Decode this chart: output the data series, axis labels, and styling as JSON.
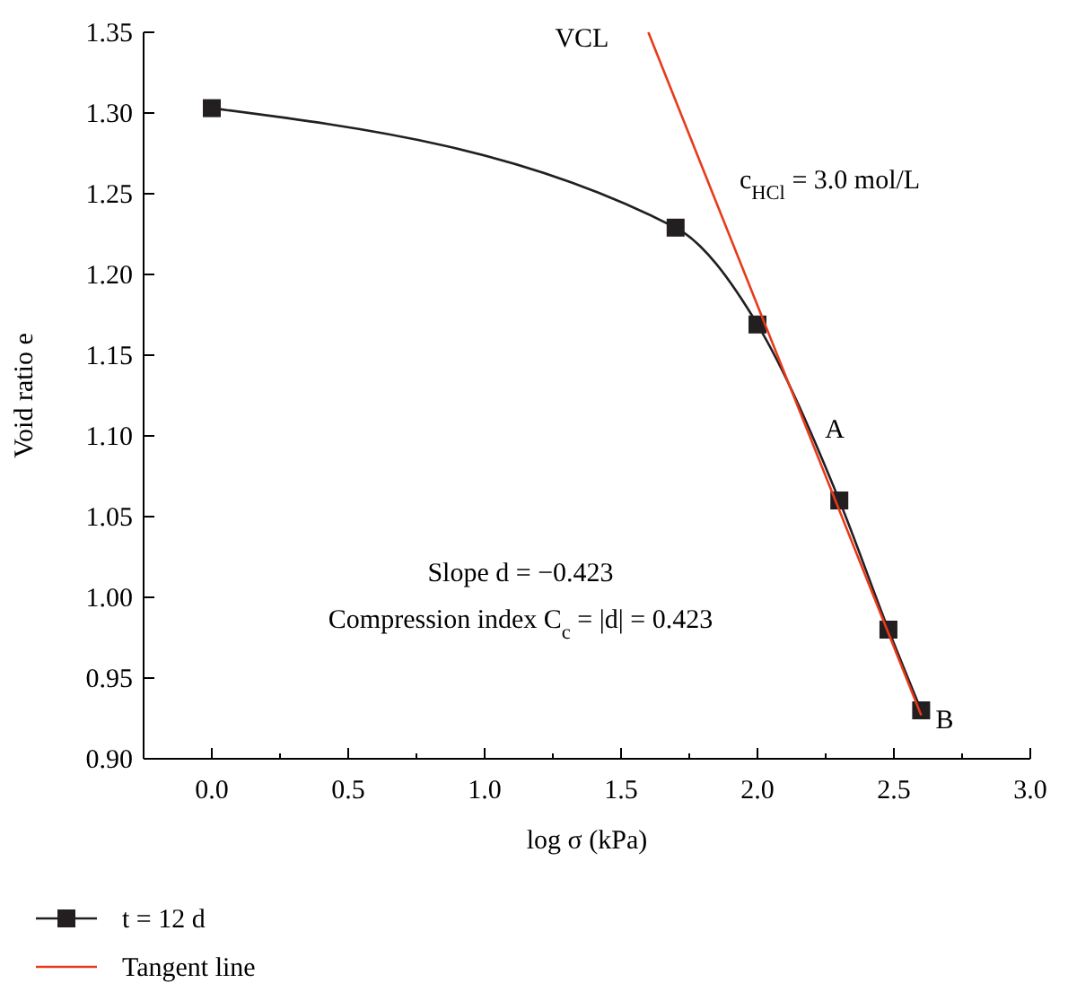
{
  "chart_data": {
    "type": "line",
    "xlabel": "log σ (kPa)",
    "ylabel": "Void ratio e",
    "xlim": [
      -0.25,
      3.0
    ],
    "xticks": [
      {
        "value": -0.25,
        "label": null
      },
      {
        "value": 0,
        "label": "0.0"
      },
      {
        "value": 0.25,
        "label": null
      },
      {
        "value": 0.5,
        "label": "0.5"
      },
      {
        "value": 0.75,
        "label": null
      },
      {
        "value": 1,
        "label": "1.0"
      },
      {
        "value": 1.25,
        "label": null
      },
      {
        "value": 1.5,
        "label": "1.5"
      },
      {
        "value": 1.75,
        "label": null
      },
      {
        "value": 2,
        "label": "2.0"
      },
      {
        "value": 2.25,
        "label": null
      },
      {
        "value": 2.5,
        "label": "2.5"
      },
      {
        "value": 2.75,
        "label": null
      },
      {
        "value": 3,
        "label": "3.0"
      }
    ],
    "ylim": [
      0.9,
      1.35
    ],
    "yticks": [
      {
        "value": 0.9,
        "label": "0.90"
      },
      {
        "value": 0.95,
        "label": "0.95"
      },
      {
        "value": 1,
        "label": "1.00"
      },
      {
        "value": 1.05,
        "label": "1.05"
      },
      {
        "value": 1.1,
        "label": "1.10"
      },
      {
        "value": 1.15,
        "label": "1.15"
      },
      {
        "value": 1.2,
        "label": "1.20"
      },
      {
        "value": 1.25,
        "label": "1.25"
      },
      {
        "value": 1.3,
        "label": "1.30"
      },
      {
        "value": 1.35,
        "label": "1.35"
      }
    ],
    "series": [
      {
        "name": "t = 12 d",
        "color": "#231f20",
        "x": [
          0,
          1.7,
          2.0,
          2.3,
          2.48,
          2.6
        ],
        "values": [
          1.303,
          1.229,
          1.169,
          1.06,
          0.98,
          0.93
        ],
        "marker": "square"
      },
      {
        "name": "Tangent line",
        "color": "#e8391d",
        "x": [
          1.6,
          2.6
        ],
        "values": [
          1.35,
          0.927
        ],
        "marker": "none"
      }
    ],
    "annotations": [
      {
        "text": "VCL",
        "x": 1.6,
        "y": 1.35
      },
      "c$_{HCl}$ = 3.0 mol/L",
      {
        "text": "A",
        "x": 2.3,
        "y": 1.06
      },
      {
        "text": "B",
        "x": 2.6,
        "y": 0.93
      },
      "Slope d = −0.423",
      "Compression index C$_{c}$ = |d| = 0.423"
    ],
    "legend": "bottom",
    "grid": false
  }
}
